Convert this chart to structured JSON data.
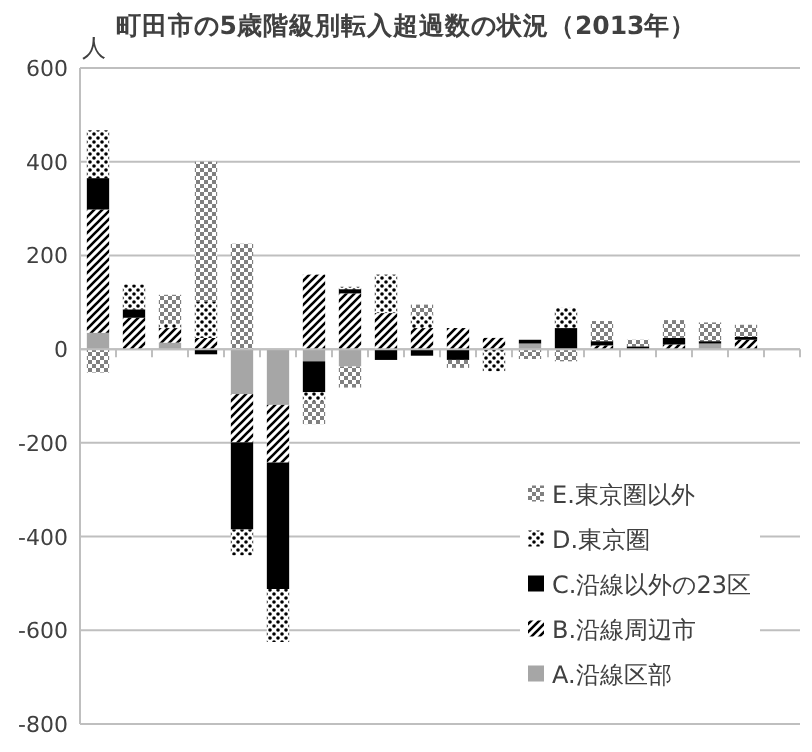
{
  "chart_data": {
    "type": "bar",
    "stacked": true,
    "title": "町田市の5歳階級別転入超過数の状況（2013年）",
    "ylabel": "人",
    "categories": [
      null,
      null,
      null,
      null,
      null,
      null,
      null,
      null,
      null,
      null,
      null,
      null,
      null,
      null,
      null,
      null,
      null,
      null,
      null,
      null
    ],
    "series": [
      {
        "name": "A.沿線区部",
        "color": "#a6a6a6",
        "values": [
          35,
          null,
          14,
          null,
          -96,
          -119,
          -26,
          -37,
          null,
          null,
          null,
          null,
          12,
          null,
          null,
          null,
          null,
          12,
          null,
          null
        ]
      },
      {
        "name": "B.沿線周辺市",
        "color": "#000000",
        "values": [
          263,
          67,
          31,
          24,
          -103,
          -123,
          159,
          119,
          77,
          45,
          45,
          24,
          null,
          null,
          8,
          null,
          10,
          null,
          20,
          null
        ]
      },
      {
        "name": "C.沿線以外の23区",
        "color": "#000000",
        "values": [
          67,
          18,
          null,
          -11,
          -186,
          -270,
          -66,
          9,
          -23,
          -14,
          -23,
          null,
          8,
          45,
          9,
          6,
          14,
          5,
          6,
          null
        ]
      },
      {
        "name": "D.東京圏",
        "color": "#000000",
        "values": [
          102,
          53,
          10,
          78,
          -55,
          -113,
          -20,
          5,
          82,
          29,
          null,
          -47,
          null,
          43,
          null,
          null,
          null,
          null,
          null,
          null
        ]
      },
      {
        "name": "E.東京圏以外",
        "color": "#808080",
        "values": [
          -50,
          null,
          61,
          298,
          225,
          null,
          -48,
          -45,
          null,
          21,
          -17,
          null,
          -21,
          -26,
          43,
          14,
          38,
          40,
          26,
          null
        ]
      }
    ],
    "ylim": [
      -800,
      600
    ],
    "yticks": [
      -800,
      -600,
      -400,
      -200,
      0,
      200,
      400,
      600
    ],
    "grid": "y",
    "legend": "bottom right"
  }
}
